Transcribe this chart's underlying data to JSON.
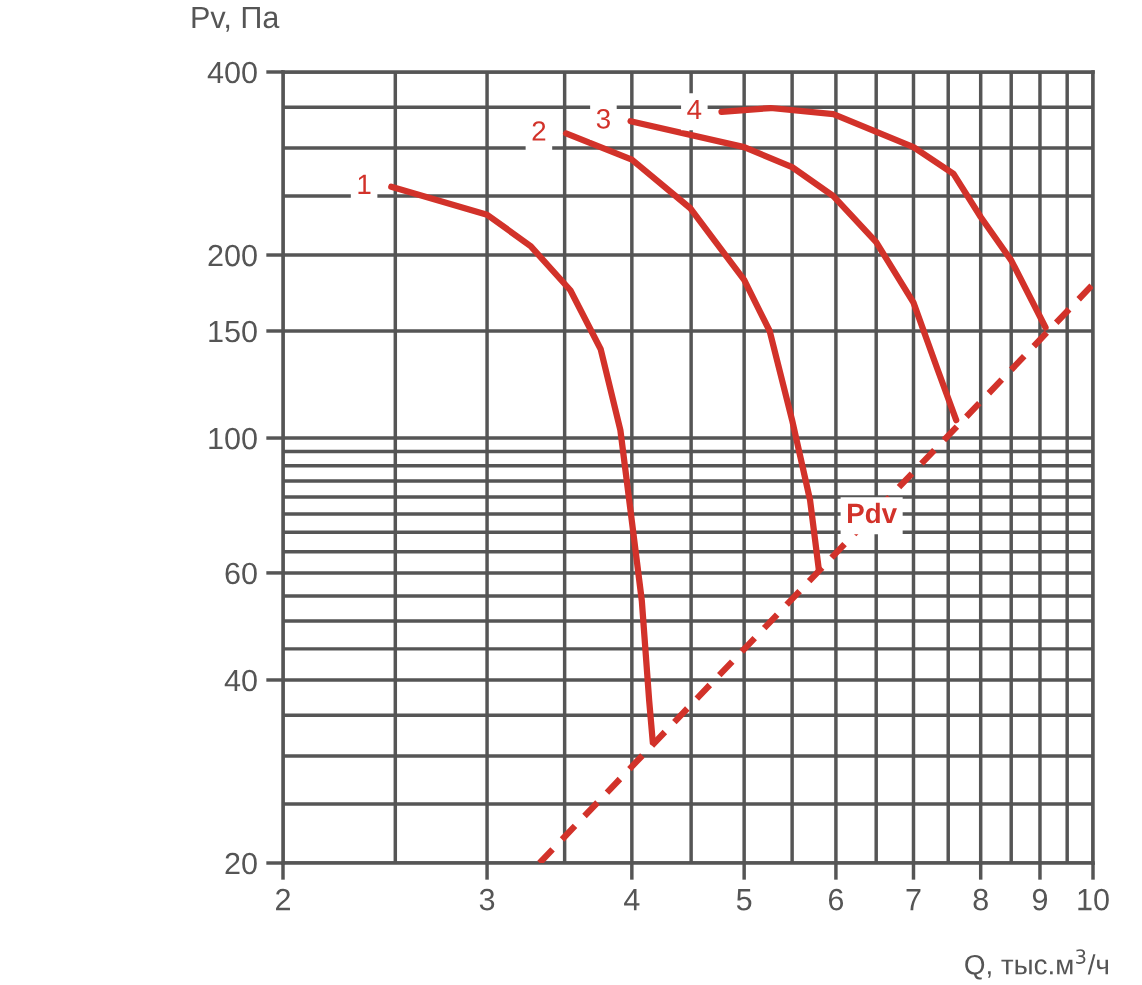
{
  "chart_data": {
    "type": "line",
    "xlabel": "Q, тыс.м$^{3}$/ч",
    "ylabel": "Pv, Па",
    "log": "xy",
    "grid": true,
    "legend": false,
    "marker": "none",
    "xlim": [
      2,
      10
    ],
    "ylim": [
      20,
      400
    ],
    "xticks": [
      2,
      {
        "value": 2.5,
        "label": null
      },
      3,
      {
        "value": 3.5,
        "label": null
      },
      4,
      {
        "value": 4.5,
        "label": null
      },
      5,
      {
        "value": 5.5,
        "label": null
      },
      6,
      {
        "value": 6.5,
        "label": null
      },
      7,
      {
        "value": 7.5,
        "label": null
      },
      8,
      {
        "value": 8.5,
        "label": null
      },
      9,
      {
        "value": 9.5,
        "label": null
      },
      10
    ],
    "yticks": [
      20,
      {
        "value": 25,
        "label": null
      },
      {
        "value": 30,
        "label": null
      },
      {
        "value": 35,
        "label": null
      },
      40,
      {
        "value": 45,
        "label": null
      },
      {
        "value": 50,
        "label": null
      },
      {
        "value": 55,
        "label": null
      },
      60,
      {
        "value": 65,
        "label": null
      },
      {
        "value": 70,
        "label": null
      },
      {
        "value": 75,
        "label": null
      },
      {
        "value": 80,
        "label": null
      },
      {
        "value": 85,
        "label": null
      },
      {
        "value": 90,
        "label": null
      },
      {
        "value": 95,
        "label": null
      },
      100,
      150,
      200,
      {
        "value": 250,
        "label": null
      },
      {
        "value": 300,
        "label": null
      },
      {
        "value": 350,
        "label": null
      },
      400
    ],
    "series": [
      {
        "name": "1",
        "color": "#d2322a",
        "line_style": "solid",
        "x": [
          2.48,
          3.0,
          3.27,
          3.54,
          3.76,
          3.91,
          4.0,
          4.08,
          4.14,
          4.17
        ],
        "values": [
          259,
          233,
          207,
          175,
          140,
          103,
          73,
          54,
          37,
          31.6
        ]
      },
      {
        "name": "2",
        "color": "#d2322a",
        "line_style": "solid",
        "x": [
          3.51,
          4.0,
          4.49,
          5.0,
          5.26,
          5.5,
          5.7,
          5.8
        ],
        "values": [
          317,
          287,
          239,
          182,
          150,
          107,
          79,
          60.7
        ]
      },
      {
        "name": "3",
        "color": "#d2322a",
        "line_style": "solid",
        "x": [
          3.99,
          5.0,
          5.5,
          5.97,
          6.5,
          7.0,
          7.35,
          7.62
        ],
        "values": [
          332,
          301,
          279,
          250,
          210,
          167,
          129,
          107
        ]
      },
      {
        "name": "4",
        "color": "#d2322a",
        "line_style": "solid",
        "x": [
          4.78,
          5.27,
          5.97,
          7.0,
          7.58,
          8.0,
          8.5,
          9.1
        ],
        "values": [
          344,
          349,
          341,
          301,
          272,
          231,
          196,
          152
        ]
      },
      {
        "name": "Pdv",
        "color": "#d2322a",
        "line_style": "dashed",
        "x": [
          3.33,
          10
        ],
        "values": [
          20,
          179
        ]
      }
    ]
  }
}
